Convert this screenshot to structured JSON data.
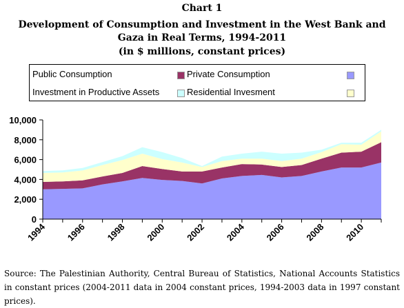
{
  "header": {
    "chart_label": "Chart 1",
    "title": "Development of Consumption and Investment in the West Bank and Gaza in Real Terms, 1994-2011",
    "subtitle": "(in $ millions, constant prices)"
  },
  "footnote": "Source: The Palestinian Authority, Central Bureau of Statistics, National Accounts Statistics in constant prices (2004-2011 data in 2004 constant prices, 1994-2003 data in 1997 constant prices).",
  "chart_data": {
    "type": "area",
    "stacked": true,
    "title": "Development of Consumption and Investment in the West Bank and Gaza in Real Terms, 1994-2011",
    "subtitle": "(in $ millions, constant prices)",
    "xlabel": "",
    "ylabel": "",
    "ylim": [
      0,
      10000
    ],
    "yticks": [
      0,
      2000,
      4000,
      6000,
      8000,
      10000
    ],
    "ytick_labels": [
      "0",
      "2,000",
      "4,000",
      "6,000",
      "8,000",
      "10,000"
    ],
    "x": [
      1994,
      1995,
      1996,
      1997,
      1998,
      1999,
      2000,
      2001,
      2002,
      2003,
      2004,
      2005,
      2006,
      2007,
      2008,
      2009,
      2010,
      2011
    ],
    "xtick_labels": [
      "1994",
      "1996",
      "1998",
      "2000",
      "2002",
      "2004",
      "2006",
      "2008",
      "2010"
    ],
    "legend_position": "top",
    "grid": false,
    "series": [
      {
        "name": "Public Consumption",
        "color": "#9999ff",
        "values": [
          3000,
          3050,
          3100,
          3500,
          3800,
          4150,
          3950,
          3850,
          3600,
          4100,
          4350,
          4450,
          4200,
          4350,
          4800,
          5200,
          5200,
          5700
        ]
      },
      {
        "name": "Private Consumption",
        "color": "#993366",
        "values": [
          750,
          750,
          800,
          800,
          850,
          1200,
          1100,
          950,
          1200,
          1100,
          1200,
          1050,
          1050,
          1100,
          1300,
          1500,
          1600,
          2050
        ]
      },
      {
        "name": "Investment in Productive Assets",
        "color": "#ffffcc",
        "values": [
          900,
          900,
          1000,
          1150,
          1300,
          1250,
          1000,
          900,
          450,
          650,
          550,
          600,
          600,
          650,
          650,
          850,
          700,
          1100
        ]
      },
      {
        "name": "Residential Invesment",
        "color": "#ccffff",
        "values": [
          200,
          220,
          250,
          300,
          400,
          650,
          700,
          450,
          100,
          450,
          500,
          700,
          750,
          600,
          250,
          150,
          200,
          150
        ]
      }
    ]
  }
}
